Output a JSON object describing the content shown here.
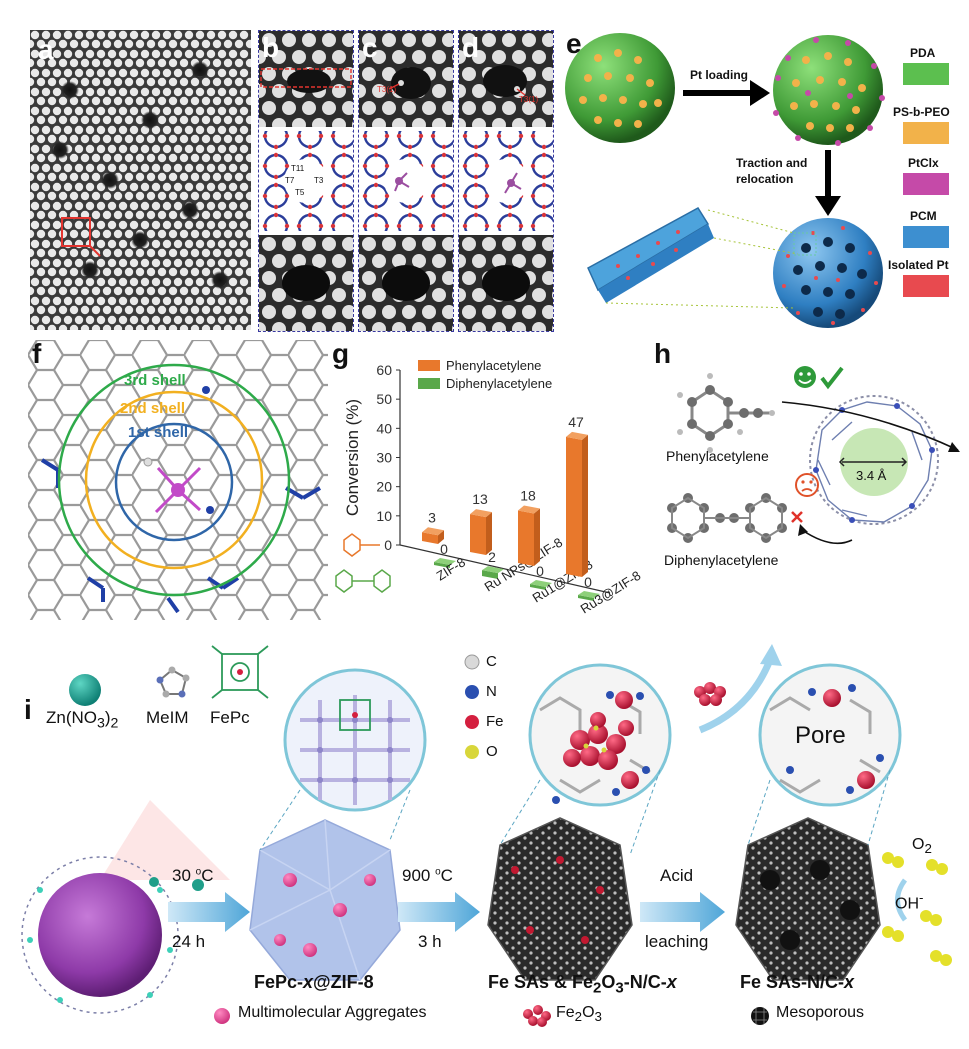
{
  "labels": {
    "a": "a",
    "b": "b",
    "c": "c",
    "d": "d",
    "e": "e",
    "f": "f",
    "g": "g",
    "h": "h",
    "i": "i"
  },
  "panel_c": {
    "site": "T3(1)"
  },
  "panel_d": {
    "site": "T3(1)"
  },
  "panel_e": {
    "pt_loading": "Pt loading",
    "traction_1": "Traction and",
    "traction_2": "relocation",
    "legend": [
      {
        "label": "PDA",
        "color": "#5cbf4f"
      },
      {
        "label": "PS-b-PEO",
        "color": "#f2b24a"
      },
      {
        "label": "PtClx",
        "color": "#c54aa8"
      },
      {
        "label": "PCM",
        "color": "#3d8fd0"
      },
      {
        "label": "Isolated Pt",
        "color": "#e84a4f"
      }
    ]
  },
  "panel_f": {
    "shell3": "3rd shell",
    "shell2": "2nd shell",
    "shell1": "1st shell"
  },
  "chart_data": {
    "type": "bar",
    "ylabel": "Conversion (%)",
    "ylim": [
      0,
      60
    ],
    "yticks": [
      "0",
      "10",
      "20",
      "30",
      "40",
      "50",
      "60"
    ],
    "categories": [
      "ZIF-8",
      "Ru NPs@ZIF-8",
      "Ru1@ZIF-8",
      "Ru3@ZIF-8"
    ],
    "series": [
      {
        "name": "Phenylacetylene",
        "values": [
          3,
          13,
          18,
          47
        ],
        "color": "#e8782c"
      },
      {
        "name": "Diphenylacetylene",
        "values": [
          0,
          2,
          0,
          0
        ],
        "color": "#5aa84a"
      }
    ]
  },
  "panel_h": {
    "phenyl": "Phenylacetylene",
    "diphenyl": "Diphenylacetylene",
    "pore": "3.4 Å"
  },
  "panel_i": {
    "zn": "Zn(NO3)2",
    "melm": "MeIM",
    "fepc": "FePc",
    "atoms": [
      {
        "label": "C",
        "color": "#d9d9d9"
      },
      {
        "label": "N",
        "color": "#2a4fb0"
      },
      {
        "label": "Fe",
        "color": "#d41f3f"
      },
      {
        "label": "O",
        "color": "#d8d63a"
      }
    ],
    "step1_top": "30 °C",
    "step1_bot": "24 h",
    "step2_top": "900 °C",
    "step2_bot": "3 h",
    "step3_top": "Acid",
    "step3_bot": "leaching",
    "name1": "FePc-x@ZIF-8",
    "name2": "Fe SAs & Fe2O3-N/C-x",
    "name3": "Fe SAs-N/C-x",
    "pore": "Pore",
    "o2": "O2",
    "oh": "OH-",
    "legend_aggr": "Multimolecular Aggregates",
    "legend_fe2o3": "Fe2O3",
    "legend_meso": "Mesoporous"
  }
}
